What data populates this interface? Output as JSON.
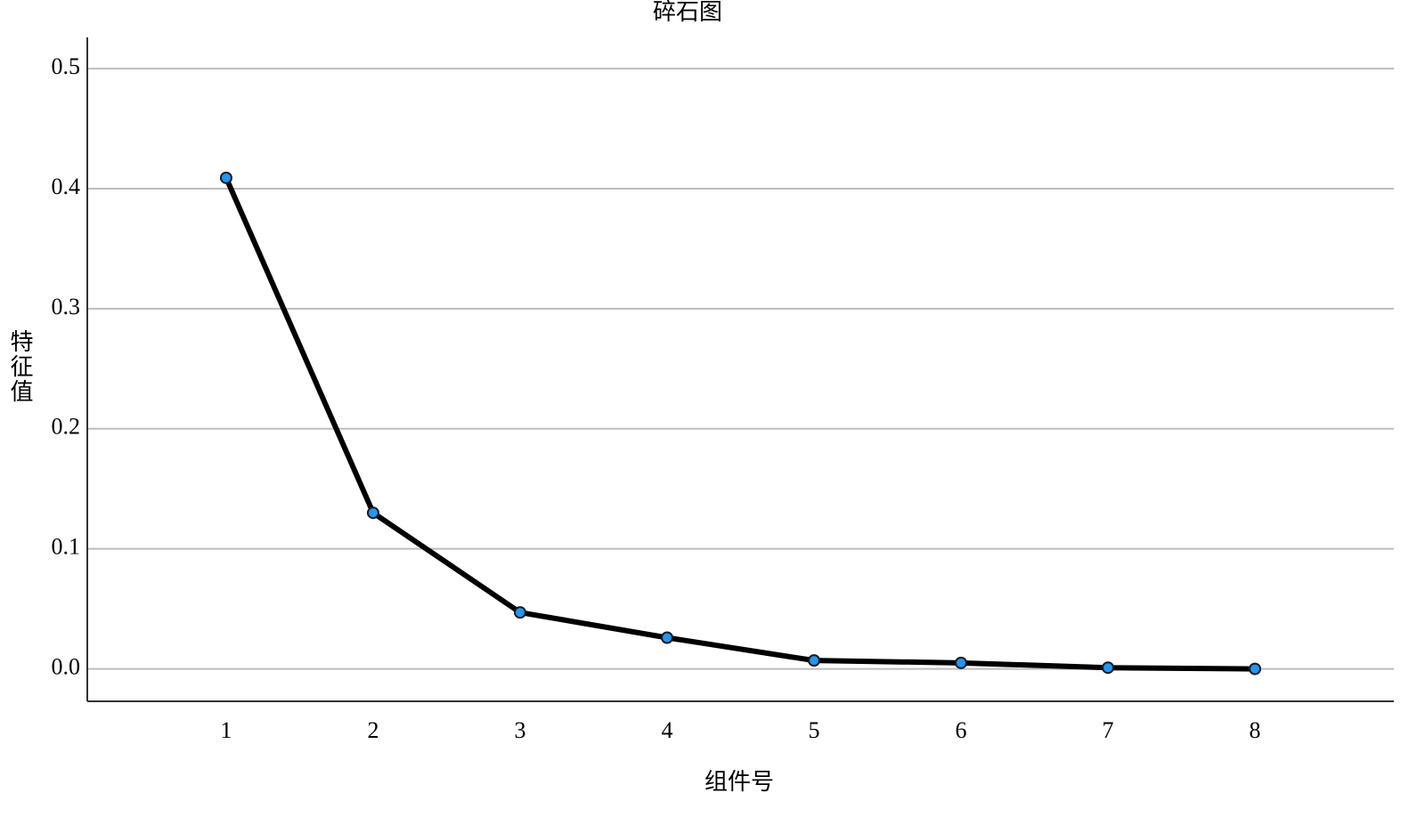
{
  "chart_data": {
    "type": "line",
    "title": "碎石图",
    "x_label": "组件号",
    "y_label": "特征值",
    "x": [
      1,
      2,
      3,
      4,
      5,
      6,
      7,
      8
    ],
    "series": [
      {
        "color": "#000000",
        "marker_color": "#2196f3",
        "values": [
          0.409,
          0.13,
          0.047,
          0.026,
          0.007,
          0.005,
          0.001,
          0.0
        ]
      }
    ],
    "xlim": [
      0.055,
      8.945
    ],
    "xticks": [
      1,
      2,
      3,
      4,
      5,
      6,
      7,
      8
    ],
    "ylim": [
      -0.027,
      0.526
    ],
    "yticks": [
      {
        "value": 0,
        "label": "0.0"
      },
      0.1,
      0.2,
      0.3,
      0.4,
      0.5
    ],
    "grid": true
  }
}
